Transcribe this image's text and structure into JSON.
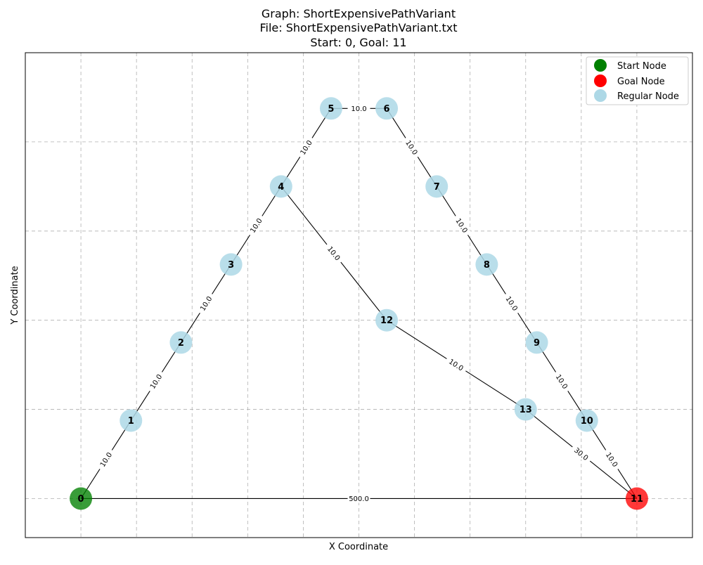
{
  "chart_data": {
    "type": "graph",
    "title_lines": [
      "Graph: ShortExpensivePathVariant",
      "File: ShortExpensivePathVariant.txt",
      "Start: 0, Goal: 11"
    ],
    "xlabel": "X Coordinate",
    "ylabel": "Y Coordinate",
    "xlim": [
      -1,
      11
    ],
    "ylim": [
      -0.7,
      8
    ],
    "x_grid": [
      0,
      1,
      2,
      3,
      4,
      5,
      6,
      7,
      8,
      9,
      10
    ],
    "y_grid": [
      0,
      1.6,
      3.2,
      4.8,
      6.4
    ],
    "grid": true,
    "start": "0",
    "goal": "11",
    "nodes": [
      {
        "id": "0",
        "x": 0,
        "y": 0,
        "role": "start"
      },
      {
        "id": "1",
        "x": 0.9,
        "y": 1.4,
        "role": "regular"
      },
      {
        "id": "2",
        "x": 1.8,
        "y": 2.8,
        "role": "regular"
      },
      {
        "id": "3",
        "x": 2.7,
        "y": 4.2,
        "role": "regular"
      },
      {
        "id": "4",
        "x": 3.6,
        "y": 5.6,
        "role": "regular"
      },
      {
        "id": "5",
        "x": 4.5,
        "y": 7.0,
        "role": "regular"
      },
      {
        "id": "6",
        "x": 5.5,
        "y": 7.0,
        "role": "regular"
      },
      {
        "id": "7",
        "x": 6.4,
        "y": 5.6,
        "role": "regular"
      },
      {
        "id": "8",
        "x": 7.3,
        "y": 4.2,
        "role": "regular"
      },
      {
        "id": "9",
        "x": 8.2,
        "y": 2.8,
        "role": "regular"
      },
      {
        "id": "10",
        "x": 9.1,
        "y": 1.4,
        "role": "regular"
      },
      {
        "id": "11",
        "x": 10,
        "y": 0,
        "role": "goal"
      },
      {
        "id": "12",
        "x": 5.5,
        "y": 3.2,
        "role": "regular"
      },
      {
        "id": "13",
        "x": 8.0,
        "y": 1.6,
        "role": "regular"
      }
    ],
    "edges": [
      {
        "from": "0",
        "to": "1",
        "weight": "10.0"
      },
      {
        "from": "1",
        "to": "2",
        "weight": "10.0"
      },
      {
        "from": "2",
        "to": "3",
        "weight": "10.0"
      },
      {
        "from": "3",
        "to": "4",
        "weight": "10.0"
      },
      {
        "from": "4",
        "to": "5",
        "weight": "10.0"
      },
      {
        "from": "5",
        "to": "6",
        "weight": "10.0"
      },
      {
        "from": "6",
        "to": "7",
        "weight": "10.0"
      },
      {
        "from": "7",
        "to": "8",
        "weight": "10.0"
      },
      {
        "from": "8",
        "to": "9",
        "weight": "10.0"
      },
      {
        "from": "9",
        "to": "10",
        "weight": "10.0"
      },
      {
        "from": "10",
        "to": "11",
        "weight": "10.0"
      },
      {
        "from": "4",
        "to": "12",
        "weight": "10.0"
      },
      {
        "from": "12",
        "to": "13",
        "weight": "10.0"
      },
      {
        "from": "13",
        "to": "11",
        "weight": "30.0"
      },
      {
        "from": "0",
        "to": "11",
        "weight": "500.0"
      }
    ],
    "legend": {
      "placement": "top-right",
      "entries": [
        {
          "label": "Start Node",
          "color": "#008000"
        },
        {
          "label": "Goal Node",
          "color": "#ff0000"
        },
        {
          "label": "Regular Node",
          "color": "#add8e6"
        }
      ]
    },
    "colors": {
      "start": "#008000",
      "goal": "#ff0000",
      "regular": "#add8e6",
      "edge": "#000000",
      "grid": "#b0b0b0"
    }
  }
}
